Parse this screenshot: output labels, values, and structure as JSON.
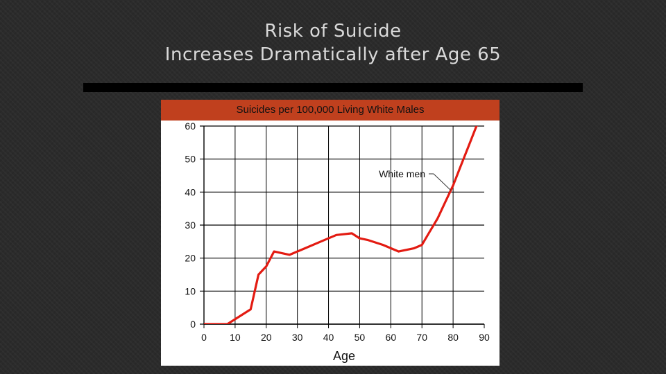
{
  "slide": {
    "title_line1": "Risk of Suicide",
    "title_line2": "Increases Dramatically after Age 65"
  },
  "colors": {
    "background": "#2b2b2b",
    "title_text": "#d9d9d9",
    "header_band": "#c0401e",
    "line": "#e31b12",
    "grid": "#000000"
  },
  "chart_data": {
    "type": "line",
    "title": "Suicides per 100,000 Living White Males",
    "xlabel": "Age",
    "ylabel": "",
    "xlim": [
      0,
      90
    ],
    "ylim": [
      0,
      60
    ],
    "x_ticks": [
      0,
      10,
      20,
      30,
      40,
      50,
      60,
      70,
      80,
      90
    ],
    "y_ticks": [
      0,
      10,
      20,
      30,
      40,
      50,
      60
    ],
    "grid": true,
    "annotation": "White men",
    "series": [
      {
        "name": "White men",
        "x": [
          0,
          7.5,
          15,
          17.5,
          20,
          22.5,
          27.5,
          32.5,
          37.5,
          42.5,
          47.5,
          50,
          52.5,
          57.5,
          62.5,
          67.5,
          70,
          72.5,
          75,
          77.5,
          80,
          82.5,
          85,
          87.5,
          88.5
        ],
        "y": [
          0,
          0,
          4.5,
          15,
          17.5,
          22,
          21,
          23,
          25,
          27,
          27.5,
          26,
          25.5,
          24,
          22,
          23,
          24,
          28,
          32,
          37,
          42,
          48,
          54,
          60,
          61
        ]
      }
    ]
  }
}
